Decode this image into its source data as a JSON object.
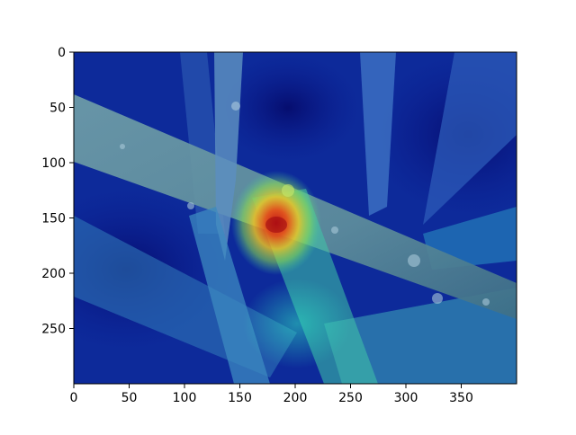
{
  "chart_data": {
    "type": "heatmap",
    "title": "",
    "xlabel": "",
    "ylabel": "",
    "xlim": [
      0,
      400
    ],
    "ylim": [
      300,
      0
    ],
    "x_ticks": [
      0,
      50,
      100,
      150,
      200,
      250,
      300,
      350
    ],
    "y_ticks": [
      0,
      50,
      100,
      150,
      200,
      250
    ],
    "colormap": "jet",
    "grid": false,
    "hotspot": {
      "x": 183,
      "y": 155
    },
    "image_content": "photo of green grass blades with water droplets under a jet-colormap heatmap overlay"
  },
  "colors": {
    "background": "#ffffff",
    "axis": "#000000"
  }
}
